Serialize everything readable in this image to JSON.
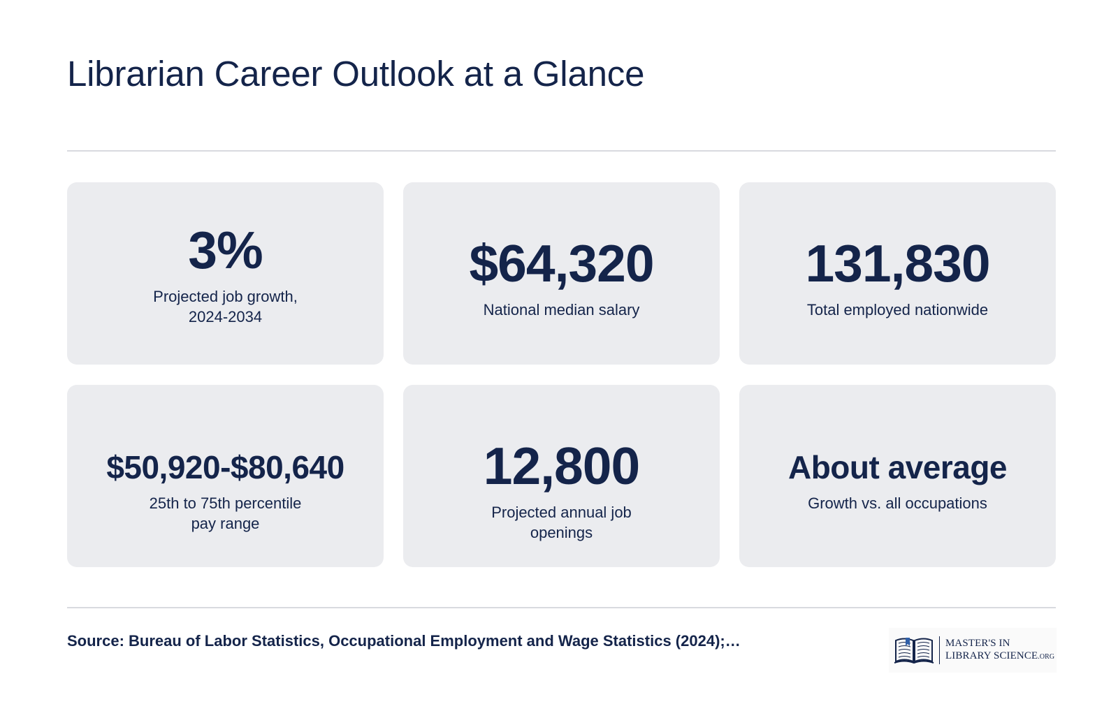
{
  "title": "Librarian Career Outlook at a Glance",
  "stats": [
    {
      "value": "3%",
      "label": "Projected job growth, 2024-2034"
    },
    {
      "value": "$64,320",
      "label": "National median salary"
    },
    {
      "value": "131,830",
      "label": "Total employed nationwide"
    },
    {
      "value": "$50,920-$80,640",
      "label": "25th to 75th percentile pay range"
    },
    {
      "value": "12,800",
      "label": "Projected annual job openings"
    },
    {
      "value": "About average",
      "label": "Growth vs. all occupations"
    }
  ],
  "source": "Source: Bureau of Labor Statistics, Occupational Employment and Wage Statistics (2024);…",
  "logo": {
    "line1": "MASTER'S IN",
    "line2": "LIBRARY SCIENCE",
    "suffix": ".ORG",
    "icon": "open-book-icon"
  },
  "colors": {
    "text": "#14244a",
    "card_bg": "#ebecef",
    "rule": "#d8dadf"
  }
}
